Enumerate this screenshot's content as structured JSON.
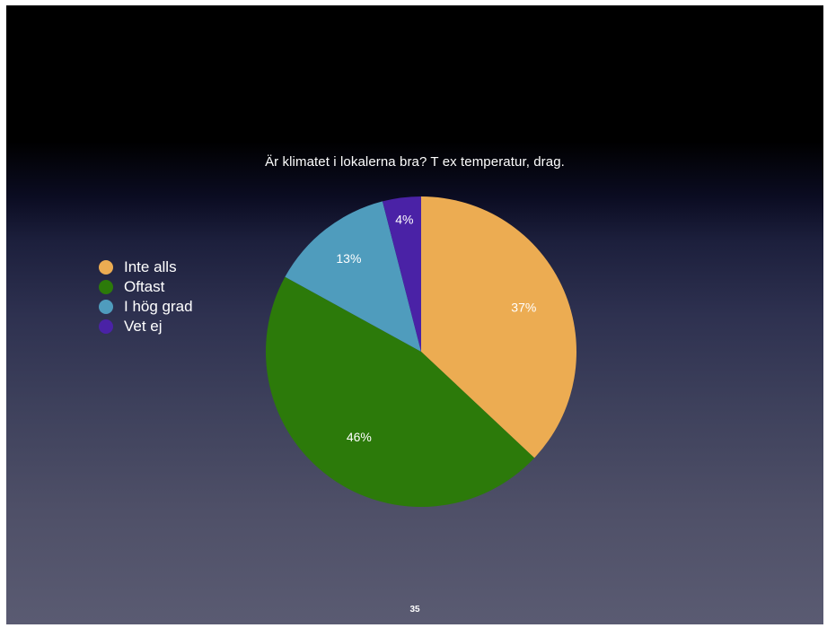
{
  "chart_data": {
    "type": "pie",
    "title": "Är klimatet i lokalerna bra? T ex temperatur, drag.",
    "legend_position": "left",
    "slices": [
      {
        "name": "Inte alls",
        "value": 37,
        "label": "37%",
        "color": "#ecac52"
      },
      {
        "name": "Oftast",
        "value": 46,
        "label": "46%",
        "color": "#2c7a0a"
      },
      {
        "name": "I hög grad",
        "value": 13,
        "label": "13%",
        "color": "#4f9cbd"
      },
      {
        "name": "Vet ej",
        "value": 4,
        "label": "4%",
        "color": "#4a22a6"
      }
    ]
  },
  "slide": {
    "page_number": "35"
  }
}
